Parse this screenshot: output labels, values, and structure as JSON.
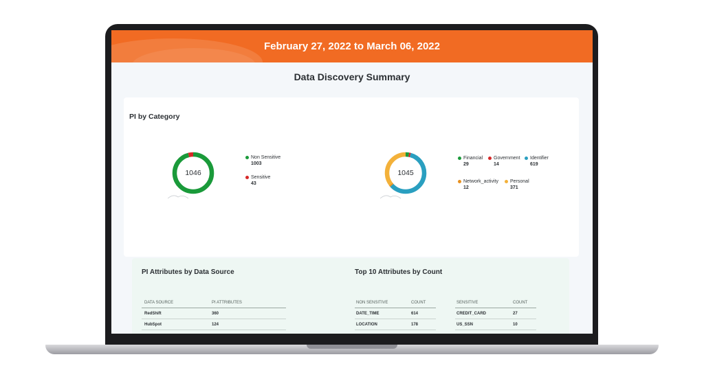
{
  "header": {
    "date_range": "February 27, 2022 to March 06, 2022"
  },
  "page": {
    "title": "Data Discovery Summary"
  },
  "pi_by_category": {
    "title": "PI by Category",
    "chart_data": [
      {
        "type": "pie",
        "total": "1046",
        "categories": [
          "Non Sensitive",
          "Sensitive"
        ],
        "values": [
          1003,
          43
        ],
        "colors": [
          "#1a9a3a",
          "#d62828"
        ],
        "legend": [
          {
            "label": "Non Sensitive",
            "value": "1003"
          },
          {
            "label": "Sensitive",
            "value": "43"
          }
        ]
      },
      {
        "type": "pie",
        "total": "1045",
        "categories": [
          "Financial",
          "Government",
          "Identifier",
          "Network_activity",
          "Personal"
        ],
        "values": [
          29,
          14,
          619,
          12,
          371
        ],
        "colors": [
          "#1a9a3a",
          "#d62828",
          "#2a9fc0",
          "#e8901e",
          "#f3b13a"
        ],
        "legend": [
          {
            "label": "Financial",
            "value": "29"
          },
          {
            "label": "Government",
            "value": "14"
          },
          {
            "label": "Identifier",
            "value": "619"
          },
          {
            "label": "Network_activity",
            "value": "12"
          },
          {
            "label": "Personal",
            "value": "371"
          }
        ]
      }
    ]
  },
  "pi_attributes": {
    "title": "PI Attributes by Data Source",
    "columns": [
      "DATA SOURCE",
      "PI ATTRIBUTES"
    ],
    "rows": [
      [
        "RedShift",
        "360"
      ],
      [
        "HubSpot",
        "124"
      ]
    ]
  },
  "top_attributes": {
    "title": "Top 10 Attributes by Count",
    "non_sensitive": {
      "columns": [
        "NON SENSITIVE",
        "COUNT"
      ],
      "rows": [
        [
          "DATE_TIME",
          "614"
        ],
        [
          "LOCATION",
          "178"
        ]
      ]
    },
    "sensitive": {
      "columns": [
        "SENSITIVE",
        "COUNT"
      ],
      "rows": [
        [
          "CREDIT_CARD",
          "27"
        ],
        [
          "US_SSN",
          "10"
        ]
      ]
    }
  }
}
